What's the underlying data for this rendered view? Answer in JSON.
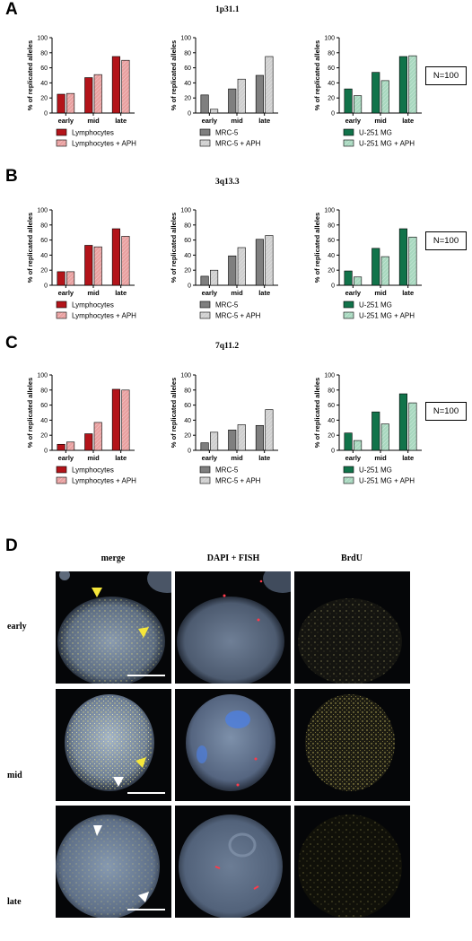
{
  "panels": [
    {
      "letter": "A",
      "locus": "1p31.1",
      "n_label": "N=100"
    },
    {
      "letter": "B",
      "locus": "3q13.3",
      "n_label": "N=100"
    },
    {
      "letter": "C",
      "locus": "7q11.2",
      "n_label": "N=100"
    }
  ],
  "panel_d": {
    "letter": "D",
    "columns": [
      "merge",
      "DAPI + FISH",
      "BrdU"
    ],
    "rows": [
      "early",
      "mid",
      "late"
    ]
  },
  "colors": {
    "lymphocytes": "#b3141a",
    "lymphocytes_aph": "#e9a0a0",
    "mrc5": "#7f7f7f",
    "mrc5_aph": "#cfcfcf",
    "u251": "#11734a",
    "u251_aph": "#a8d8bf"
  },
  "chart_data": [
    {
      "type": "bar",
      "panel": "A",
      "cell": "Lymphocytes",
      "ylabel": "% of replicated alleles",
      "ylim": [
        0,
        100
      ],
      "yticks": [
        0,
        20,
        40,
        60,
        80,
        100
      ],
      "categories": [
        "early",
        "mid",
        "late"
      ],
      "series": [
        {
          "name": "Lymphocytes",
          "values": [
            25,
            47,
            75
          ]
        },
        {
          "name": "Lymphocytes + APH",
          "values": [
            26,
            51,
            70
          ]
        }
      ]
    },
    {
      "type": "bar",
      "panel": "A",
      "cell": "MRC-5",
      "ylabel": "% of replicated alleles",
      "ylim": [
        0,
        100
      ],
      "yticks": [
        0,
        20,
        40,
        60,
        80,
        100
      ],
      "categories": [
        "early",
        "mid",
        "late"
      ],
      "series": [
        {
          "name": "MRC-5",
          "values": [
            24,
            32,
            50
          ]
        },
        {
          "name": "MRC-5 + APH",
          "values": [
            5,
            45,
            75
          ]
        }
      ]
    },
    {
      "type": "bar",
      "panel": "A",
      "cell": "U-251 MG",
      "ylabel": "% of replicated alleles",
      "ylim": [
        0,
        100
      ],
      "yticks": [
        0,
        20,
        40,
        60,
        80,
        100
      ],
      "categories": [
        "early",
        "mid",
        "late"
      ],
      "series": [
        {
          "name": "U-251 MG",
          "values": [
            32,
            54,
            75
          ]
        },
        {
          "name": "U-251 MG + APH",
          "values": [
            23,
            43,
            76
          ]
        }
      ]
    },
    {
      "type": "bar",
      "panel": "B",
      "cell": "Lymphocytes",
      "ylabel": "% of replicated alleles",
      "ylim": [
        0,
        100
      ],
      "yticks": [
        0,
        20,
        40,
        60,
        80,
        100
      ],
      "categories": [
        "early",
        "mid",
        "late"
      ],
      "series": [
        {
          "name": "Lymphocytes",
          "values": [
            18,
            53,
            75
          ]
        },
        {
          "name": "Lymphocytes + APH",
          "values": [
            18,
            51,
            65
          ]
        }
      ]
    },
    {
      "type": "bar",
      "panel": "B",
      "cell": "MRC-5",
      "ylabel": "% of replicated alleles",
      "ylim": [
        0,
        100
      ],
      "yticks": [
        0,
        20,
        40,
        60,
        80,
        100
      ],
      "categories": [
        "early",
        "mid",
        "late"
      ],
      "series": [
        {
          "name": "MRC-5",
          "values": [
            12,
            39,
            61
          ]
        },
        {
          "name": "MRC-5 + APH",
          "values": [
            20,
            50,
            66
          ]
        }
      ]
    },
    {
      "type": "bar",
      "panel": "B",
      "cell": "U-251 MG",
      "ylabel": "% of replicated alleles",
      "ylim": [
        0,
        100
      ],
      "yticks": [
        0,
        20,
        40,
        60,
        80,
        100
      ],
      "categories": [
        "early",
        "mid",
        "late"
      ],
      "series": [
        {
          "name": "U-251 MG",
          "values": [
            19,
            49,
            75
          ]
        },
        {
          "name": "U-251 MG + APH",
          "values": [
            11,
            38,
            64
          ]
        }
      ]
    },
    {
      "type": "bar",
      "panel": "C",
      "cell": "Lymphocytes",
      "ylabel": "% of replicated alleles",
      "ylim": [
        0,
        100
      ],
      "yticks": [
        0,
        20,
        40,
        60,
        80,
        100
      ],
      "categories": [
        "early",
        "mid",
        "late"
      ],
      "series": [
        {
          "name": "Lymphocytes",
          "values": [
            8,
            22,
            81
          ]
        },
        {
          "name": "Lymphocytes + APH",
          "values": [
            11,
            37,
            80
          ]
        }
      ]
    },
    {
      "type": "bar",
      "panel": "C",
      "cell": "MRC-5",
      "ylabel": "% of replicated alleles",
      "ylim": [
        0,
        100
      ],
      "yticks": [
        0,
        20,
        40,
        60,
        80,
        100
      ],
      "categories": [
        "early",
        "mid",
        "late"
      ],
      "series": [
        {
          "name": "MRC-5",
          "values": [
            10,
            27,
            33
          ]
        },
        {
          "name": "MRC-5 + APH",
          "values": [
            24,
            34,
            54
          ]
        }
      ]
    },
    {
      "type": "bar",
      "panel": "C",
      "cell": "U-251 MG",
      "ylabel": "% of replicated alleles",
      "ylim": [
        0,
        100
      ],
      "yticks": [
        0,
        20,
        40,
        60,
        80,
        100
      ],
      "categories": [
        "early",
        "mid",
        "late"
      ],
      "series": [
        {
          "name": "U-251 MG",
          "values": [
            23,
            51,
            75
          ]
        },
        {
          "name": "U-251 MG + APH",
          "values": [
            13,
            35,
            63
          ]
        }
      ]
    }
  ]
}
